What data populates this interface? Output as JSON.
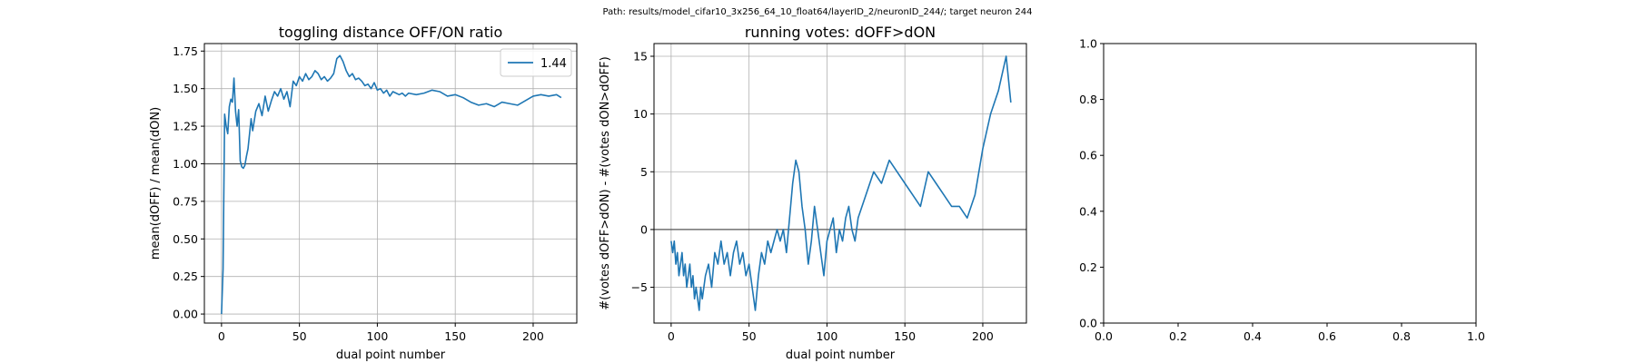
{
  "suptitle": "Path: results/model_cifar10_3x256_64_10_float64/layerID_2/neuronID_244/; target neuron 244",
  "colors": {
    "series": "#1f77b4",
    "refline": "#555555",
    "grid": "#b0b0b0",
    "axes": "#000000"
  },
  "chart_data": [
    {
      "type": "line",
      "title": "toggling distance OFF/ON ratio",
      "xlabel": "dual point number",
      "ylabel": "mean(dOFF) / mean(dON)",
      "xlim": [
        -11,
        228
      ],
      "ylim": [
        -0.06,
        1.8
      ],
      "xticks": [
        0,
        50,
        100,
        150,
        200
      ],
      "xtick_labels": [
        "0",
        "50",
        "100",
        "150",
        "200"
      ],
      "yticks": [
        0.0,
        0.25,
        0.5,
        0.75,
        1.0,
        1.25,
        1.5,
        1.75
      ],
      "ytick_labels": [
        "0.00",
        "0.25",
        "0.50",
        "0.75",
        "1.00",
        "1.25",
        "1.50",
        "1.75"
      ],
      "grid": true,
      "reference_line": 1.0,
      "legend": {
        "position": "upper-right",
        "entries": [
          "1.44"
        ]
      },
      "series": [
        {
          "name": "1.44",
          "x": [
            0,
            1,
            2,
            3,
            4,
            5,
            6,
            7,
            8,
            9,
            10,
            11,
            12,
            13,
            14,
            15,
            16,
            17,
            18,
            19,
            20,
            22,
            24,
            26,
            28,
            30,
            32,
            34,
            36,
            38,
            40,
            42,
            44,
            46,
            48,
            50,
            52,
            54,
            56,
            58,
            60,
            62,
            64,
            66,
            68,
            70,
            72,
            74,
            76,
            78,
            80,
            82,
            84,
            86,
            88,
            90,
            92,
            94,
            96,
            98,
            100,
            102,
            104,
            106,
            108,
            110,
            112,
            114,
            116,
            118,
            120,
            125,
            130,
            135,
            140,
            145,
            150,
            155,
            160,
            165,
            170,
            175,
            180,
            185,
            190,
            195,
            200,
            205,
            210,
            215,
            218
          ],
          "y": [
            0.0,
            0.3,
            1.33,
            1.25,
            1.2,
            1.38,
            1.43,
            1.41,
            1.57,
            1.35,
            1.25,
            1.36,
            1.02,
            0.98,
            0.97,
            0.99,
            1.05,
            1.1,
            1.2,
            1.3,
            1.22,
            1.35,
            1.4,
            1.32,
            1.45,
            1.35,
            1.42,
            1.48,
            1.45,
            1.5,
            1.43,
            1.48,
            1.38,
            1.55,
            1.52,
            1.58,
            1.55,
            1.6,
            1.56,
            1.58,
            1.62,
            1.6,
            1.56,
            1.58,
            1.55,
            1.57,
            1.6,
            1.7,
            1.72,
            1.68,
            1.62,
            1.58,
            1.6,
            1.56,
            1.57,
            1.55,
            1.52,
            1.53,
            1.5,
            1.54,
            1.49,
            1.5,
            1.47,
            1.49,
            1.45,
            1.48,
            1.47,
            1.46,
            1.47,
            1.45,
            1.47,
            1.46,
            1.47,
            1.49,
            1.48,
            1.45,
            1.46,
            1.44,
            1.41,
            1.39,
            1.4,
            1.38,
            1.41,
            1.4,
            1.39,
            1.42,
            1.45,
            1.46,
            1.45,
            1.46,
            1.44
          ]
        }
      ]
    },
    {
      "type": "line",
      "title": "running votes: dOFF>dON",
      "xlabel": "dual point number",
      "ylabel": "#(votes dOFF>dON) - #(votes dON>dOFF)",
      "xlim": [
        -11,
        228
      ],
      "ylim": [
        -8.1,
        16.1
      ],
      "xticks": [
        0,
        50,
        100,
        150,
        200
      ],
      "xtick_labels": [
        "0",
        "50",
        "100",
        "150",
        "200"
      ],
      "yticks": [
        -5,
        0,
        5,
        10,
        15
      ],
      "ytick_labels": [
        "−5",
        "0",
        "5",
        "10",
        "15"
      ],
      "grid": true,
      "reference_line": 0,
      "series": [
        {
          "name": "",
          "x": [
            0,
            1,
            2,
            3,
            4,
            5,
            6,
            7,
            8,
            9,
            10,
            11,
            12,
            13,
            14,
            15,
            16,
            17,
            18,
            19,
            20,
            22,
            24,
            26,
            28,
            30,
            32,
            34,
            36,
            38,
            40,
            42,
            44,
            46,
            48,
            50,
            52,
            54,
            56,
            58,
            60,
            62,
            64,
            66,
            68,
            70,
            72,
            74,
            76,
            78,
            80,
            82,
            84,
            86,
            88,
            90,
            92,
            94,
            96,
            98,
            100,
            102,
            104,
            106,
            108,
            110,
            112,
            114,
            116,
            118,
            120,
            125,
            130,
            135,
            140,
            145,
            150,
            155,
            160,
            165,
            170,
            175,
            180,
            185,
            190,
            195,
            200,
            205,
            210,
            215,
            218
          ],
          "y": [
            -1,
            -2,
            -1,
            -3,
            -2,
            -4,
            -3,
            -2,
            -4,
            -3,
            -5,
            -4,
            -3,
            -5,
            -4,
            -6,
            -5,
            -6,
            -7,
            -5,
            -6,
            -4,
            -3,
            -5,
            -2,
            -3,
            -1,
            -3,
            -2,
            -4,
            -2,
            -1,
            -3,
            -2,
            -4,
            -3,
            -5,
            -7,
            -4,
            -2,
            -3,
            -1,
            -2,
            -1,
            0,
            -1,
            0,
            -2,
            1,
            4,
            6,
            5,
            2,
            0,
            -3,
            -1,
            2,
            0,
            -2,
            -4,
            -1,
            0,
            1,
            -2,
            0,
            -1,
            1,
            2,
            0,
            -1,
            1,
            3,
            5,
            4,
            6,
            5,
            4,
            3,
            2,
            5,
            4,
            3,
            2,
            2,
            1,
            3,
            7,
            10,
            12,
            15,
            11
          ]
        }
      ]
    },
    {
      "type": "line",
      "title": "",
      "xlabel": "",
      "ylabel": "",
      "xlim": [
        0.0,
        1.0
      ],
      "ylim": [
        0.0,
        1.0
      ],
      "xticks": [
        0.0,
        0.2,
        0.4,
        0.6,
        0.8,
        1.0
      ],
      "xtick_labels": [
        "0.0",
        "0.2",
        "0.4",
        "0.6",
        "0.8",
        "1.0"
      ],
      "yticks": [
        0.0,
        0.2,
        0.4,
        0.6,
        0.8,
        1.0
      ],
      "ytick_labels": [
        "0.0",
        "0.2",
        "0.4",
        "0.6",
        "0.8",
        "1.0"
      ],
      "grid": false,
      "series": []
    }
  ]
}
